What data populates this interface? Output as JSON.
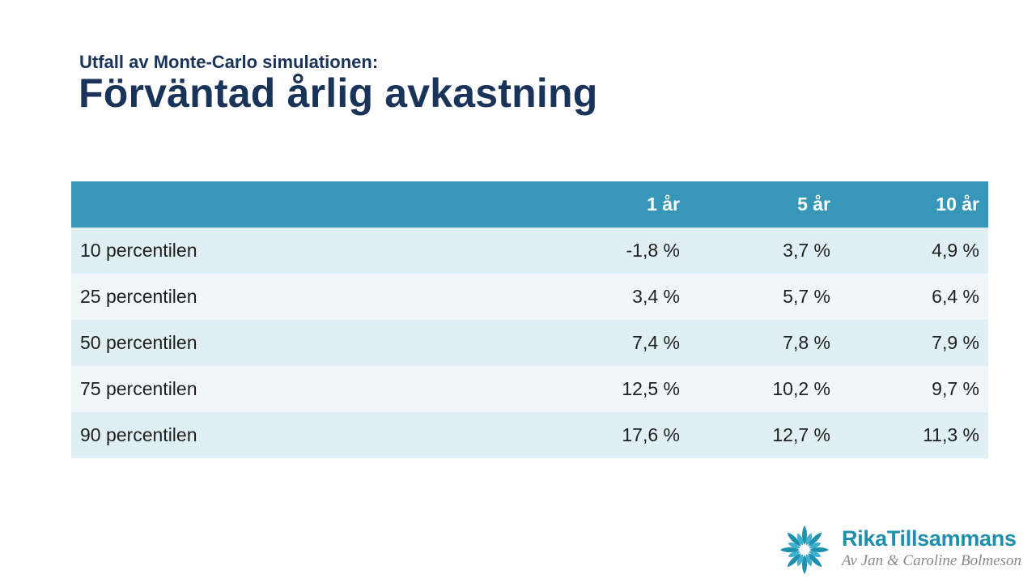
{
  "slide": {
    "subtitle": "Utfall av Monte-Carlo simulationen:",
    "title": "Förväntad årlig avkastning"
  },
  "table": {
    "headers": [
      "",
      "1 år",
      "5 år",
      "10 år"
    ],
    "rows": [
      {
        "label": "10 percentilen",
        "values": [
          "-1,8 %",
          "3,7 %",
          "4,9 %"
        ]
      },
      {
        "label": "25 percentilen",
        "values": [
          "3,4 %",
          "5,7 %",
          "6,4 %"
        ]
      },
      {
        "label": "50 percentilen",
        "values": [
          "7,4 %",
          "7,8 %",
          "7,9 %"
        ]
      },
      {
        "label": "75 percentilen",
        "values": [
          "12,5 %",
          "10,2 %",
          "9,7 %"
        ]
      },
      {
        "label": "90 percentilen",
        "values": [
          "17,6 %",
          "12,7 %",
          "11,3 %"
        ]
      }
    ]
  },
  "logo": {
    "brand": "RikaTillsammans",
    "byline": "Av Jan & Caroline Bolmeson"
  },
  "colors": {
    "title": "#1a3459",
    "header_bg": "#3797b8",
    "row_odd_bg": "#e0eff4",
    "row_even_bg": "#f1f7f9",
    "brand": "#1f8fae"
  }
}
